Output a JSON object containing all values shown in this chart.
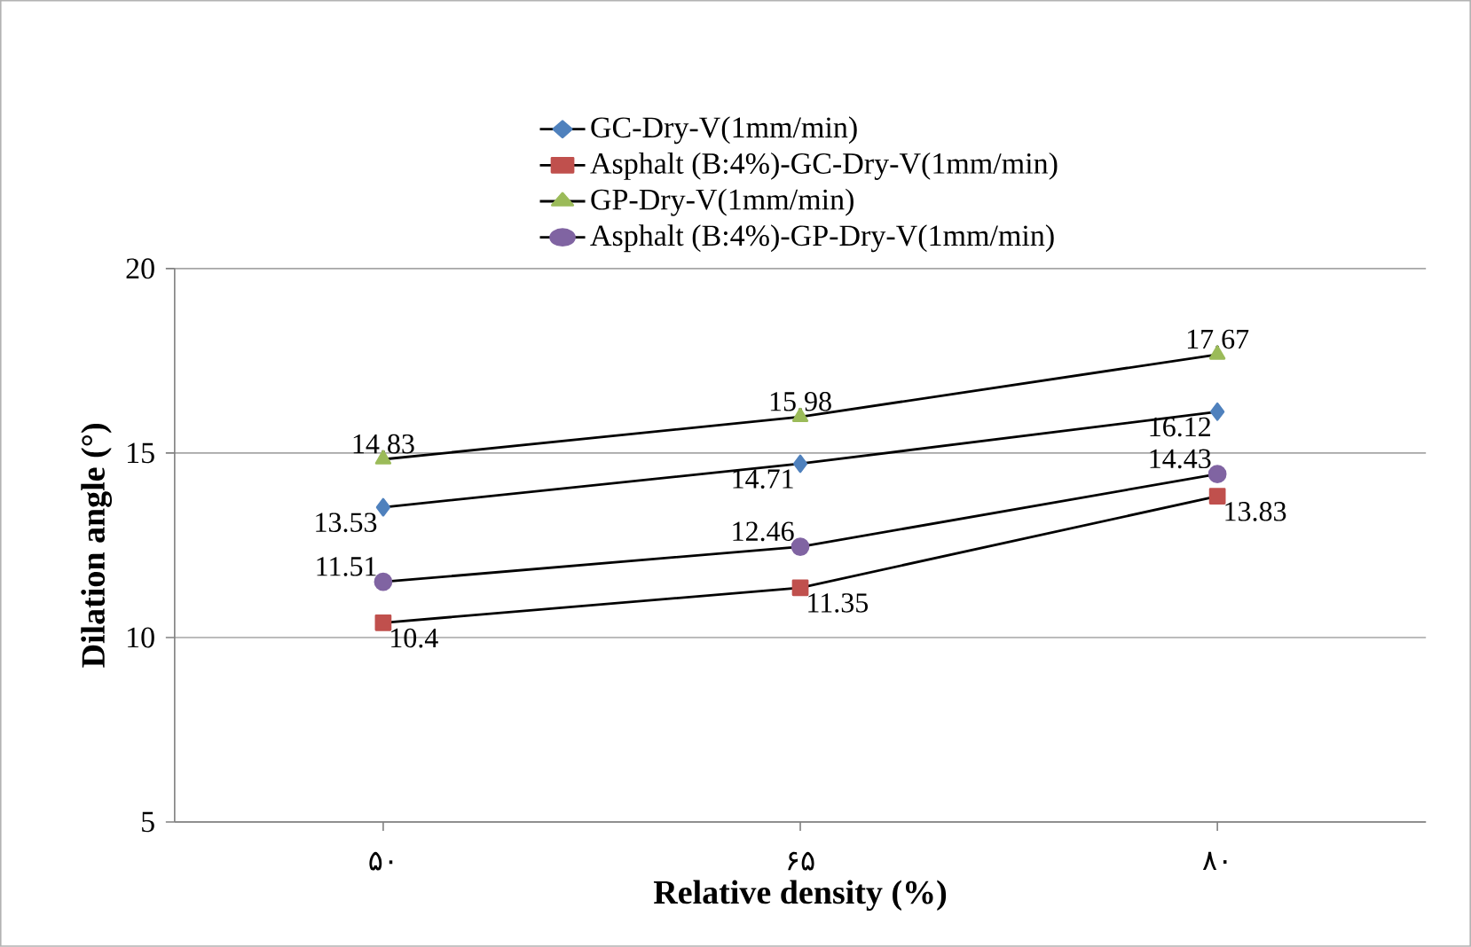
{
  "chart_data": {
    "type": "line",
    "xlabel": "Relative density (%)",
    "ylabel": "Dilation angle (°)",
    "categories": [
      "۵۰",
      "۶۵",
      "۸۰"
    ],
    "series": [
      {
        "name": "GC-Dry-V(1mm/min)",
        "color": "#4f81bd",
        "marker": "diamond",
        "values": [
          13.53,
          14.71,
          16.12
        ]
      },
      {
        "name": "Asphalt (B:4%)-GC-Dry-V(1mm/min)",
        "color": "#c0504d",
        "marker": "square",
        "values": [
          10.4,
          11.35,
          13.83
        ]
      },
      {
        "name": "GP-Dry-V(1mm/min)",
        "color": "#9bbb59",
        "marker": "triangle",
        "values": [
          14.83,
          15.98,
          17.67
        ]
      },
      {
        "name": "Asphalt (B:4%)-GP-Dry-V(1mm/min)",
        "color": "#8064a2",
        "marker": "circle",
        "values": [
          11.51,
          12.46,
          14.43
        ]
      }
    ],
    "ylim": [
      5,
      20
    ],
    "yticks": [
      5,
      10,
      15,
      20
    ],
    "grid": "y",
    "legend": "top",
    "data_labels": true,
    "line_style": "solid"
  }
}
